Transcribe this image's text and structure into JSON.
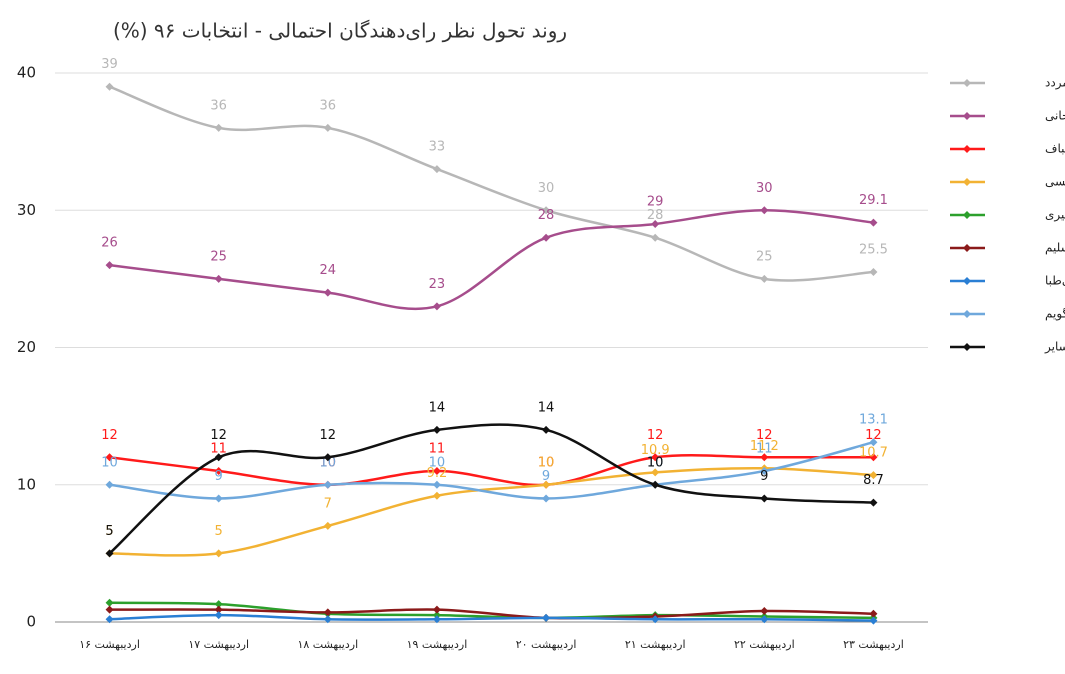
{
  "chart_data": {
    "type": "line",
    "title": "روند تحول نظر رای‌دهندگان احتمالی - انتخابات ۹۶ (%)",
    "categories": [
      "اردیبهشت ۱۶",
      "اردیبهشت ۱۷",
      "اردیبهشت ۱۸",
      "اردیبهشت ۱۹",
      "اردیبهشت ۲۰",
      "اردیبهشت ۲۱",
      "اردیبهشت ۲۲",
      "اردیبهشت ۲۳"
    ],
    "ylim": [
      0,
      40
    ],
    "yticks": [
      0,
      10,
      20,
      30,
      40
    ],
    "grid": true,
    "legend": "right",
    "series": [
      {
        "name": "مردد",
        "color": "#b7b7b7",
        "labels": true,
        "values": [
          39,
          36,
          36,
          33,
          30,
          28,
          25,
          25.5
        ]
      },
      {
        "name": "روحانی",
        "color": "#a64d8c",
        "labels": true,
        "values": [
          26,
          25,
          24,
          23,
          28,
          29,
          30,
          29.1
        ]
      },
      {
        "name": "قالیباف",
        "color": "#ff1a1a",
        "labels": true,
        "values": [
          12,
          11,
          10,
          11,
          10,
          12,
          12,
          12
        ]
      },
      {
        "name": "رئیسی",
        "color": "#f2b233",
        "labels": true,
        "values": [
          5,
          5,
          7,
          9.2,
          10,
          10.9,
          11.2,
          10.7
        ]
      },
      {
        "name": "جهانگیری",
        "color": "#2ca02c",
        "labels": false,
        "values": [
          1.4,
          1.3,
          0.6,
          0.5,
          0.3,
          0.5,
          0.4,
          0.3
        ]
      },
      {
        "name": "میرسلیم",
        "color": "#8b1a1a",
        "labels": false,
        "values": [
          0.9,
          0.9,
          0.7,
          0.9,
          0.3,
          0.4,
          0.8,
          0.6
        ]
      },
      {
        "name": "هاشمی‌طبا",
        "color": "#2a7fd4",
        "labels": false,
        "values": [
          0.2,
          0.5,
          0.2,
          0.2,
          0.3,
          0.2,
          0.2,
          0.1
        ]
      },
      {
        "name": "نمی‌گویم",
        "color": "#6fa8dc",
        "labels": true,
        "values": [
          10,
          9,
          10,
          10,
          9,
          10,
          11,
          13.1
        ]
      },
      {
        "name": "سایر",
        "color": "#111111",
        "labels": true,
        "values": [
          5,
          12,
          12,
          14,
          14,
          10,
          9,
          8.7
        ]
      }
    ]
  }
}
